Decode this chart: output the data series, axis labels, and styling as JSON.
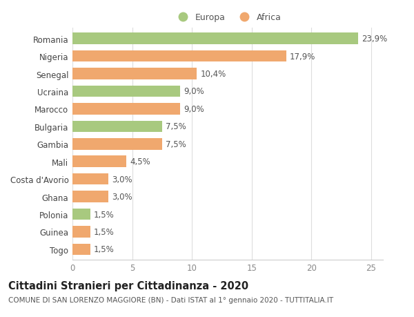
{
  "categories": [
    "Romania",
    "Nigeria",
    "Senegal",
    "Ucraina",
    "Marocco",
    "Bulgaria",
    "Gambia",
    "Mali",
    "Costa d'Avorio",
    "Ghana",
    "Polonia",
    "Guinea",
    "Togo"
  ],
  "values": [
    23.9,
    17.9,
    10.4,
    9.0,
    9.0,
    7.5,
    7.5,
    4.5,
    3.0,
    3.0,
    1.5,
    1.5,
    1.5
  ],
  "labels": [
    "23,9%",
    "17,9%",
    "10,4%",
    "9,0%",
    "9,0%",
    "7,5%",
    "7,5%",
    "4,5%",
    "3,0%",
    "3,0%",
    "1,5%",
    "1,5%",
    "1,5%"
  ],
  "continents": [
    "Europa",
    "Africa",
    "Africa",
    "Europa",
    "Africa",
    "Europa",
    "Africa",
    "Africa",
    "Africa",
    "Africa",
    "Europa",
    "Africa",
    "Africa"
  ],
  "color_europa": "#a8c97f",
  "color_africa": "#f0a86e",
  "legend_europa": "Europa",
  "legend_africa": "Africa",
  "xlim": [
    0,
    26
  ],
  "xticks": [
    0,
    5,
    10,
    15,
    20,
    25
  ],
  "title_main": "Cittadini Stranieri per Cittadinanza - 2020",
  "title_sub": "COMUNE DI SAN LORENZO MAGGIORE (BN) - Dati ISTAT al 1° gennaio 2020 - TUTTITALIA.IT",
  "background_color": "#ffffff",
  "bar_height": 0.65,
  "label_fontsize": 8.5,
  "tick_fontsize": 8.5,
  "title_fontsize": 10.5,
  "subtitle_fontsize": 7.5
}
